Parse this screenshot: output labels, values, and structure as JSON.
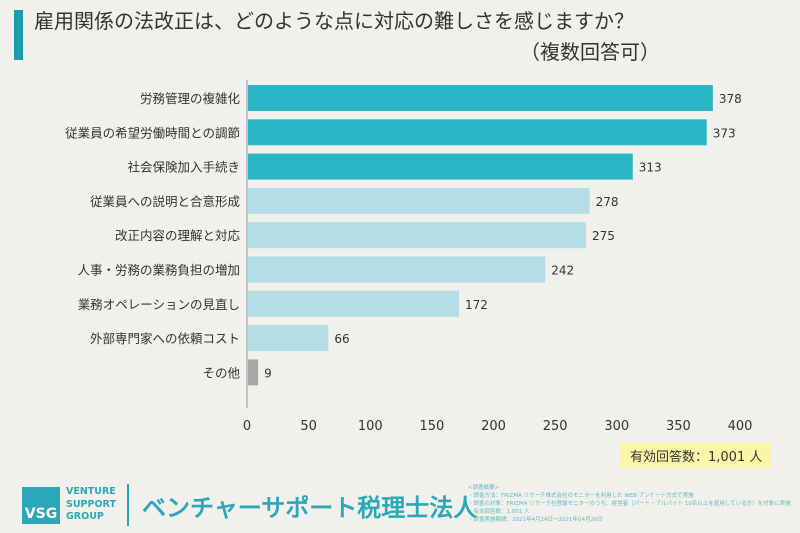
{
  "title": "雇用関係の法改正は、どのような点に対応の難しさを感じますか？",
  "subtitle": "（複数回答可）",
  "note": "有効回答数：1,001 人",
  "logo": {
    "mark": "VSG",
    "lines": [
      "VENTURE",
      "SUPPORT",
      "GROUP"
    ],
    "brand": "ベンチャーサポート税理士法人"
  },
  "footnotes": [
    "<調査概要>",
    "・調査方法：FRIZMA リサーチ株式会社のモニターを利用した WEB アンケート方式で実施",
    "・調査の対象：FRIZMA リサーチ社登録モニターのうち、経営者（パート・アルバイト 10名以上を雇用している方）を対象に実施",
    "・有効回答数：1,001 人",
    "・調査実施期間：2021年4月24日～2021年04月26日"
  ],
  "colors": {
    "top": "#2bb6c6",
    "rest": "#b3dee5",
    "other": "#a8a8a8"
  },
  "chart_data": {
    "type": "bar",
    "orientation": "horizontal",
    "categories": [
      "労務管理の複雑化",
      "従業員の希望労働時間との調節",
      "社会保険加入手続き",
      "従業員への説明と合意形成",
      "改正内容の理解と対応",
      "人事・労務の業務負担の増加",
      "業務オペレーションの見直し",
      "外部専門家への依頼コスト",
      "その他"
    ],
    "values": [
      378,
      373,
      313,
      278,
      275,
      242,
      172,
      66,
      9
    ],
    "xlim": [
      0,
      400
    ],
    "xticks": [
      "0",
      "50",
      "100",
      "150",
      "200",
      "250",
      "300",
      "350",
      "400"
    ],
    "grid": false
  }
}
